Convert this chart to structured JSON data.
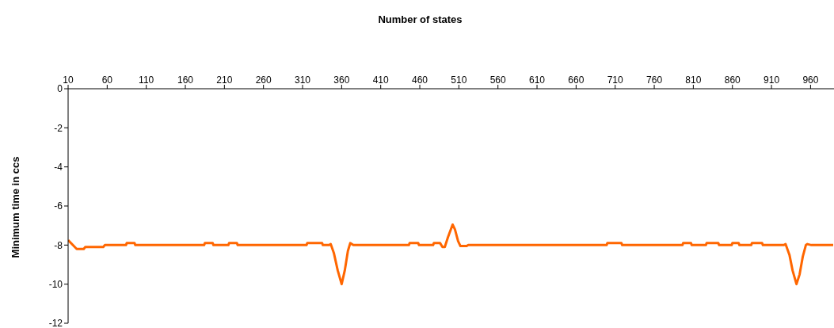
{
  "chart_data": {
    "type": "line",
    "title": "Number of states",
    "ylabel": "Minimum time in ccs",
    "x": [
      10,
      21,
      30,
      32,
      55,
      57,
      84,
      85,
      95,
      96,
      184,
      185,
      195,
      196,
      215,
      216,
      226,
      227,
      315,
      316,
      335,
      336,
      344,
      346,
      350,
      355,
      360,
      364,
      368,
      371,
      375,
      446,
      447,
      458,
      459,
      477,
      478,
      486,
      489,
      492,
      496,
      502,
      505,
      509,
      512,
      520,
      522,
      699,
      700,
      718,
      719,
      796,
      797,
      807,
      808,
      826,
      827,
      842,
      843,
      859,
      860,
      868,
      869,
      884,
      885,
      898,
      899,
      926,
      928,
      933,
      937,
      942,
      946,
      950,
      954,
      956,
      961,
      989
    ],
    "series": [
      {
        "color": "#ff6600",
        "values": [
          -7.75,
          -8.2,
          -8.2,
          -8.1,
          -8.1,
          -8,
          -8,
          -7.9,
          -7.9,
          -8,
          -8,
          -7.9,
          -7.9,
          -8,
          -8,
          -7.9,
          -7.9,
          -8,
          -8,
          -7.9,
          -7.9,
          -8,
          -8,
          -7.95,
          -8.4,
          -9.3,
          -10,
          -9.3,
          -8.3,
          -7.9,
          -8,
          -8,
          -7.9,
          -7.9,
          -8,
          -8,
          -7.9,
          -7.9,
          -8.1,
          -8.1,
          -7.6,
          -6.95,
          -7.2,
          -7.8,
          -8.05,
          -8.05,
          -8,
          -8,
          -7.9,
          -7.9,
          -8,
          -8,
          -7.9,
          -7.9,
          -8,
          -8,
          -7.9,
          -7.9,
          -8,
          -8,
          -7.9,
          -7.9,
          -8,
          -8,
          -7.9,
          -7.9,
          -8,
          -8,
          -7.95,
          -8.5,
          -9.3,
          -10,
          -9.5,
          -8.6,
          -8,
          -7.95,
          -8,
          -8
        ]
      }
    ],
    "xlim": [
      10,
      990
    ],
    "xticks": [
      10,
      60,
      110,
      160,
      210,
      260,
      310,
      360,
      410,
      460,
      510,
      560,
      610,
      660,
      710,
      760,
      810,
      860,
      910,
      960
    ],
    "ylim": [
      -12,
      0
    ],
    "yticks": [
      0,
      -2,
      -4,
      -6,
      -8,
      -10,
      -12
    ],
    "grid": false,
    "legend": false,
    "marker": "none",
    "line_style": "solid"
  }
}
